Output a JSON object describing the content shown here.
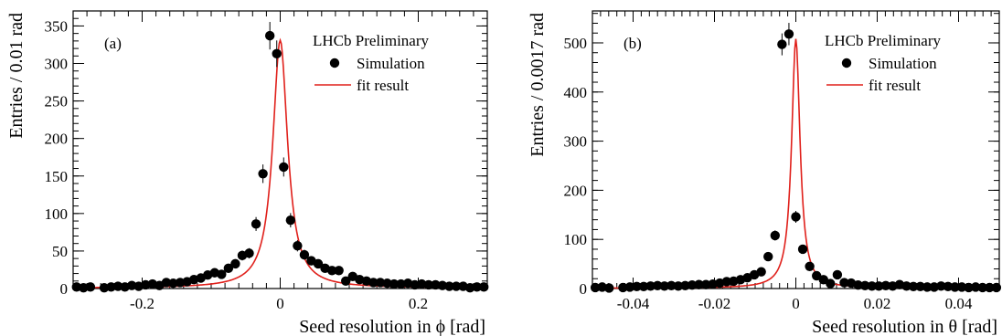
{
  "chart_data": [
    {
      "type": "scatter",
      "panel_label": "(a)",
      "annotation": "LHCb Preliminary",
      "xlabel": "Seed resolution in ϕ [rad]",
      "ylabel": "Entries / 0.01 rad",
      "xlim": [
        -0.3,
        0.3
      ],
      "ylim": [
        0,
        370
      ],
      "xticks": [
        -0.2,
        0,
        0.2
      ],
      "xtick_labels": [
        "-0.2",
        "0",
        "0.2"
      ],
      "yticks": [
        0,
        50,
        100,
        150,
        200,
        250,
        300,
        350
      ],
      "ytick_labels": [
        "0",
        "50",
        "100",
        "150",
        "200",
        "250",
        "300",
        "350"
      ],
      "legend": {
        "position": "top-right",
        "entries": [
          "Simulation",
          "fit result"
        ]
      },
      "series": [
        {
          "name": "Simulation",
          "kind": "points",
          "x": [
            -0.295,
            -0.285,
            -0.275,
            -0.255,
            -0.245,
            -0.235,
            -0.225,
            -0.215,
            -0.205,
            -0.195,
            -0.185,
            -0.175,
            -0.165,
            -0.155,
            -0.145,
            -0.135,
            -0.125,
            -0.115,
            -0.105,
            -0.095,
            -0.085,
            -0.075,
            -0.065,
            -0.055,
            -0.045,
            -0.035,
            -0.025,
            -0.015,
            -0.005,
            0.005,
            0.015,
            0.025,
            0.035,
            0.045,
            0.055,
            0.065,
            0.075,
            0.085,
            0.095,
            0.105,
            0.115,
            0.125,
            0.135,
            0.145,
            0.155,
            0.165,
            0.175,
            0.185,
            0.195,
            0.205,
            0.215,
            0.225,
            0.235,
            0.245,
            0.255,
            0.265,
            0.275,
            0.285,
            0.295
          ],
          "y": [
            2,
            1,
            2,
            1,
            2,
            3,
            2,
            4,
            3,
            5,
            6,
            4,
            8,
            7,
            8,
            9,
            12,
            14,
            18,
            21,
            19,
            27,
            33,
            44,
            47,
            86,
            153,
            337,
            313,
            162,
            91,
            57,
            45,
            37,
            33,
            27,
            24,
            24,
            10,
            16,
            12,
            10,
            8,
            8,
            7,
            6,
            6,
            7,
            5,
            6,
            5,
            5,
            4,
            3,
            3,
            3,
            1,
            2,
            2
          ]
        },
        {
          "name": "fit result",
          "kind": "line",
          "color": "#e0201b"
        }
      ]
    },
    {
      "type": "scatter",
      "panel_label": "(b)",
      "annotation": "LHCb Preliminary",
      "xlabel": "Seed resolution in θ [rad]",
      "ylabel": "Entries / 0.0017 rad",
      "xlim": [
        -0.05,
        0.05
      ],
      "ylim": [
        0,
        565
      ],
      "xticks": [
        -0.04,
        -0.02,
        0,
        0.02,
        0.04
      ],
      "xtick_labels": [
        "-0.04",
        "-0.02",
        "0",
        "0.02",
        "0.04"
      ],
      "yticks": [
        0,
        100,
        200,
        300,
        400,
        500
      ],
      "ytick_labels": [
        "0",
        "100",
        "200",
        "300",
        "400",
        "500"
      ],
      "legend": {
        "position": "top-right",
        "entries": [
          "Simulation",
          "fit result"
        ]
      },
      "series": [
        {
          "name": "Simulation",
          "kind": "points",
          "x": [
            -0.0493,
            -0.0476,
            -0.0459,
            -0.0425,
            -0.0408,
            -0.0391,
            -0.0374,
            -0.0357,
            -0.034,
            -0.0323,
            -0.0306,
            -0.0289,
            -0.0272,
            -0.0255,
            -0.0238,
            -0.0221,
            -0.0204,
            -0.0187,
            -0.017,
            -0.0153,
            -0.0136,
            -0.0119,
            -0.0102,
            -0.0085,
            -0.0068,
            -0.0051,
            -0.0034,
            -0.0017,
            0.0,
            0.0017,
            0.0034,
            0.0051,
            0.0068,
            0.0085,
            0.0102,
            0.0119,
            0.0136,
            0.0153,
            0.017,
            0.0187,
            0.0204,
            0.0221,
            0.0238,
            0.0255,
            0.0272,
            0.0289,
            0.0306,
            0.0323,
            0.034,
            0.0357,
            0.0374,
            0.0391,
            0.0408,
            0.0425,
            0.0442,
            0.0459,
            0.0476,
            0.0493
          ],
          "y": [
            2,
            3,
            1,
            2,
            3,
            4,
            4,
            5,
            6,
            5,
            6,
            5,
            6,
            7,
            8,
            8,
            9,
            11,
            14,
            15,
            18,
            22,
            28,
            34,
            65,
            108,
            497,
            518,
            146,
            80,
            45,
            26,
            18,
            10,
            28,
            12,
            11,
            7,
            6,
            5,
            5,
            6,
            5,
            8,
            5,
            4,
            4,
            3,
            3,
            5,
            4,
            3,
            3,
            2,
            3,
            2,
            2,
            2
          ]
        },
        {
          "name": "fit result",
          "kind": "line",
          "color": "#e0201b"
        }
      ]
    }
  ]
}
